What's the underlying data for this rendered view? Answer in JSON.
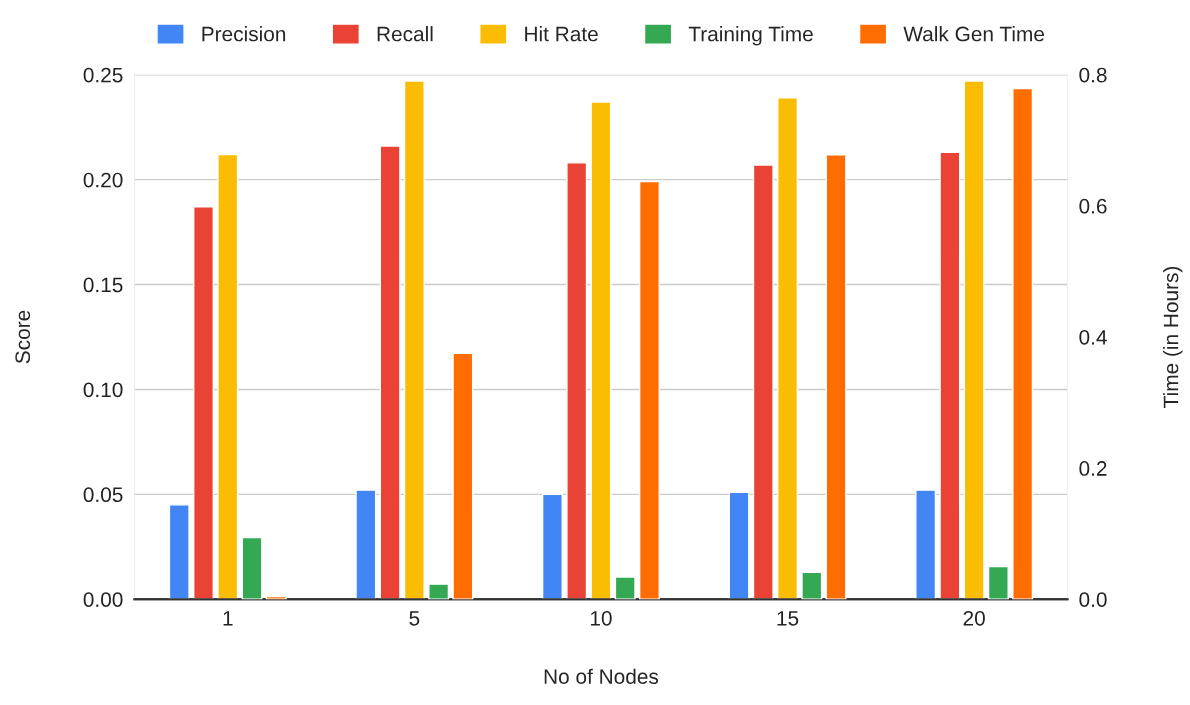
{
  "chart_data": {
    "type": "bar",
    "xlabel": "No of Nodes",
    "ylabel": "Score",
    "y2label": "Time (in Hours)",
    "categories": [
      "1",
      "5",
      "10",
      "15",
      "20"
    ],
    "series": [
      {
        "name": "Precision",
        "color": "#4285f4",
        "values": [
          0.045,
          0.052,
          0.05,
          0.051,
          0.052
        ]
      },
      {
        "name": "Recall",
        "color": "#ea4335",
        "values": [
          0.187,
          0.216,
          0.208,
          0.207,
          0.213
        ]
      },
      {
        "name": "Hit Rate",
        "color": "#fbbc04",
        "values": [
          0.212,
          0.247,
          0.237,
          0.239,
          0.247
        ]
      },
      {
        "name": "Training Time",
        "color": "#34a853",
        "axis": "y2",
        "values": [
          0.094,
          0.023,
          0.034,
          0.041,
          0.05
        ]
      },
      {
        "name": "Walk Gen Time",
        "color": "#ff6d01",
        "axis": "y2",
        "values": [
          0.004,
          0.375,
          0.637,
          0.678,
          0.779
        ]
      }
    ],
    "ylim": [
      0,
      0.25
    ],
    "yticks": [
      {
        "value": 0,
        "label": "0.00"
      },
      0.05,
      {
        "value": 0.1,
        "label": "0.10"
      },
      0.15,
      {
        "value": 0.2,
        "label": "0.20"
      },
      0.25
    ],
    "y2lim": [
      0,
      0.8
    ],
    "y2ticks": [
      {
        "value": 0,
        "label": "0.0"
      },
      0.2,
      0.4,
      0.6,
      0.8
    ],
    "grid": "y",
    "legend": "top"
  }
}
